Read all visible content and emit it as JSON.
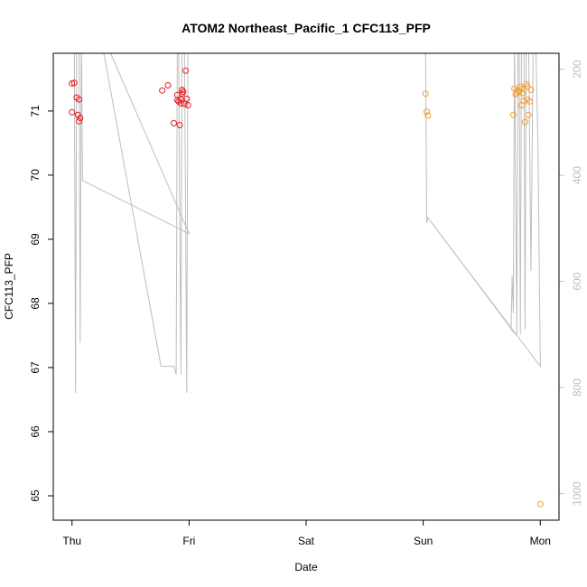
{
  "chart_data": {
    "type": "scatter",
    "title": "ATOM2 Northeast_Pacific_1 CFC113_PFP",
    "xlabel": "Date",
    "ylabel": "CFC113_PFP",
    "xlim": [
      -0.16,
      4.16
    ],
    "ylim": [
      64.62,
      71.9
    ],
    "x_ticks": [
      {
        "value": 0,
        "label": "Thu"
      },
      {
        "value": 1,
        "label": "Fri"
      },
      {
        "value": 2,
        "label": "Sat"
      },
      {
        "value": 3,
        "label": "Sun"
      },
      {
        "value": 4,
        "label": "Mon"
      }
    ],
    "y_ticks": [
      65,
      66,
      67,
      68,
      69,
      70,
      71
    ],
    "y2_ticks": [
      200,
      400,
      600,
      800,
      1000
    ],
    "y2lim": [
      1050,
      170
    ],
    "colors": {
      "red": "#e31a1c",
      "orange": "#f29d2f",
      "line": "#bebebe",
      "axis": "#000000",
      "axis_right": "#bebebe"
    },
    "series": [
      {
        "color": "red",
        "points": [
          [
            0.0,
            71.43
          ],
          [
            0.02,
            71.44
          ],
          [
            0.0,
            70.98
          ],
          [
            0.04,
            71.21
          ],
          [
            0.06,
            71.18
          ],
          [
            0.05,
            70.94
          ],
          [
            0.07,
            70.89
          ],
          [
            0.06,
            70.84
          ],
          [
            0.77,
            71.32
          ],
          [
            0.82,
            71.4
          ],
          [
            0.87,
            70.81
          ],
          [
            0.9,
            71.25
          ],
          [
            0.9,
            71.17
          ],
          [
            0.91,
            71.15
          ],
          [
            0.93,
            71.18
          ],
          [
            0.93,
            71.12
          ],
          [
            0.94,
            71.33
          ],
          [
            0.94,
            71.27
          ],
          [
            0.95,
            71.3
          ],
          [
            0.96,
            71.11
          ],
          [
            0.97,
            71.63
          ],
          [
            0.98,
            71.19
          ],
          [
            0.99,
            71.09
          ],
          [
            0.92,
            70.78
          ]
        ]
      },
      {
        "color": "orange",
        "points": [
          [
            3.02,
            71.27
          ],
          [
            3.03,
            70.99
          ],
          [
            3.04,
            70.93
          ],
          [
            3.77,
            70.94
          ],
          [
            3.78,
            71.35
          ],
          [
            3.79,
            71.26
          ],
          [
            3.8,
            71.29
          ],
          [
            3.81,
            71.32
          ],
          [
            3.82,
            71.3
          ],
          [
            3.83,
            71.38
          ],
          [
            3.84,
            71.34
          ],
          [
            3.84,
            71.09
          ],
          [
            3.85,
            71.28
          ],
          [
            3.86,
            71.16
          ],
          [
            3.87,
            70.83
          ],
          [
            3.88,
            71.42
          ],
          [
            3.89,
            71.38
          ],
          [
            3.89,
            71.18
          ],
          [
            3.9,
            70.94
          ],
          [
            3.91,
            71.15
          ],
          [
            3.92,
            71.33
          ],
          [
            4.0,
            64.87
          ]
        ]
      }
    ],
    "altitude_line": [
      [
        0.02,
        140
      ],
      [
        0.03,
        810
      ],
      [
        0.04,
        140
      ],
      [
        0.06,
        140
      ],
      [
        0.07,
        715
      ],
      [
        0.08,
        120
      ],
      [
        0.09,
        410
      ],
      [
        1.0,
        510
      ],
      [
        0.23,
        120
      ],
      [
        0.76,
        760
      ],
      [
        0.87,
        760
      ],
      [
        0.89,
        775
      ],
      [
        0.9,
        140
      ],
      [
        0.91,
        140
      ],
      [
        0.93,
        775
      ],
      [
        0.94,
        140
      ],
      [
        0.96,
        140
      ],
      [
        0.98,
        810
      ],
      [
        0.99,
        140
      ],
      [
        3.02,
        140
      ],
      [
        3.03,
        490
      ],
      [
        3.04,
        480
      ],
      [
        3.79,
        700
      ],
      [
        3.75,
        690
      ],
      [
        3.76,
        590
      ],
      [
        3.77,
        660
      ],
      [
        3.78,
        140
      ],
      [
        3.8,
        700
      ],
      [
        3.81,
        140
      ],
      [
        3.82,
        140
      ],
      [
        3.83,
        700
      ],
      [
        3.84,
        140
      ],
      [
        3.86,
        140
      ],
      [
        3.87,
        690
      ],
      [
        3.88,
        140
      ],
      [
        3.9,
        140
      ],
      [
        3.92,
        580
      ],
      [
        3.94,
        140
      ],
      [
        3.96,
        140
      ],
      [
        3.98,
        340
      ],
      [
        4.0,
        760
      ],
      [
        3.04,
        480
      ],
      [
        4.0,
        760
      ]
    ]
  }
}
